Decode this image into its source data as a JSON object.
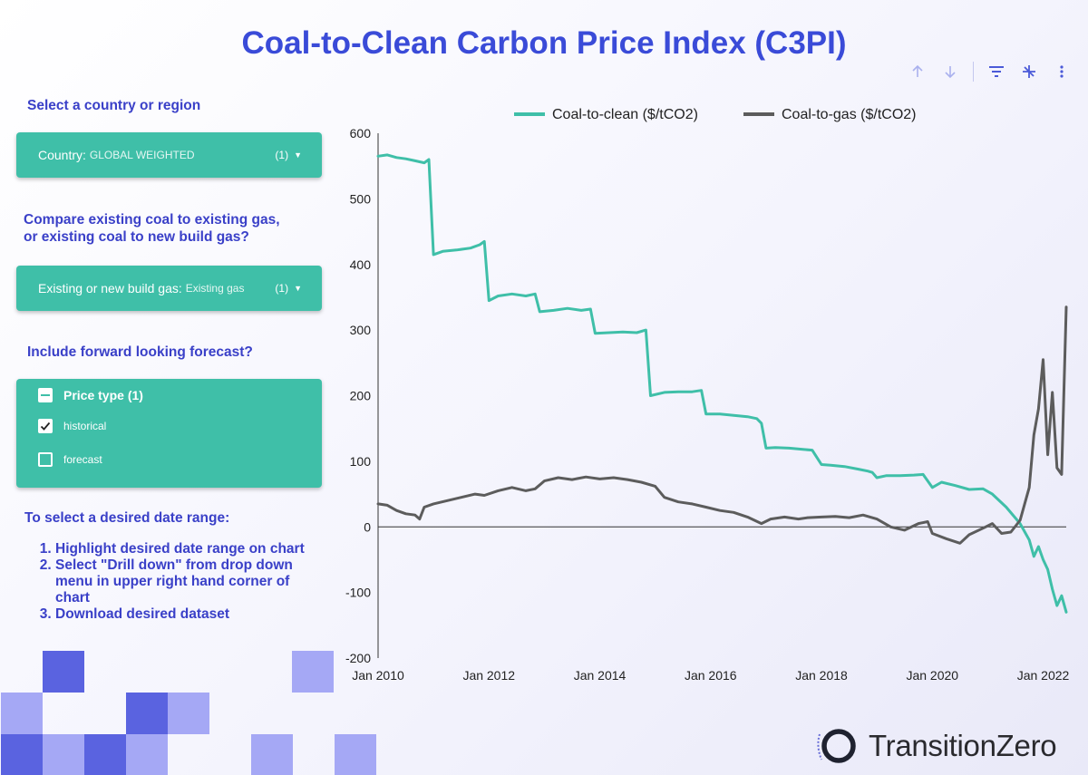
{
  "page": {
    "title": "Coal-to-Clean Carbon Price Index (C3PI)"
  },
  "toolbar": {
    "icons": [
      "sort-ascending-icon",
      "sort-descending-icon",
      "filter-icon",
      "drill-down-icon",
      "more-vert-icon"
    ]
  },
  "controls": {
    "country_prompt": "Select a country or region",
    "country_dropdown": {
      "label": "Country:",
      "value": "GLOBAL WEIGHTED",
      "count": "(1)"
    },
    "gas_prompt_line1": "Compare existing coal to existing gas,",
    "gas_prompt_line2": "or existing coal to new build gas?",
    "gas_dropdown": {
      "label": "Existing or new build gas:",
      "value": "Existing gas",
      "count": "(1)"
    },
    "forecast_prompt": "Include forward looking forecast?",
    "price_type": {
      "header": "Price type (1)",
      "options": [
        {
          "label": "historical",
          "checked": true
        },
        {
          "label": "forecast",
          "checked": false
        }
      ]
    }
  },
  "instructions": {
    "heading": "To select a desired date range:",
    "steps": [
      "Highlight desired date range on chart",
      "Select \"Drill down\" from drop down menu in upper right hand corner of chart",
      "Download desired dataset"
    ]
  },
  "logo": {
    "text": "TransitionZero"
  },
  "colors": {
    "title": "#3a4bd8",
    "prompt": "#3a40c8",
    "control_bg": "#3fbfa8",
    "coal_to_clean": "#3fbfa8",
    "coal_to_gas": "#5c5c5c",
    "tile_light": "#a5a8f5",
    "tile_dark": "#5a63e0"
  },
  "chart_data": {
    "type": "line",
    "title": "",
    "xlabel": "",
    "ylabel": "",
    "ylim": [
      -200,
      600
    ],
    "yticks": [
      "600",
      "500",
      "400",
      "300",
      "200",
      "100",
      "0",
      "-100",
      "-200"
    ],
    "xlim": [
      "2010-01",
      "2022-06"
    ],
    "xticks": [
      "Jan 2010",
      "Jan 2012",
      "Jan 2014",
      "Jan 2016",
      "Jan 2018",
      "Jan 2020",
      "Jan 2022"
    ],
    "grid": false,
    "zero_line": true,
    "legend_position": "top",
    "series": [
      {
        "name": "Coal-to-clean ($/tCO2)",
        "color": "#3fbfa8",
        "points": [
          [
            "2010-01",
            565
          ],
          [
            "2010-03",
            567
          ],
          [
            "2010-05",
            563
          ],
          [
            "2010-07",
            561
          ],
          [
            "2010-09",
            558
          ],
          [
            "2010-11",
            555
          ],
          [
            "2010-12",
            560
          ],
          [
            "2011-01",
            415
          ],
          [
            "2011-03",
            420
          ],
          [
            "2011-06",
            422
          ],
          [
            "2011-09",
            425
          ],
          [
            "2011-11",
            430
          ],
          [
            "2011-12",
            435
          ],
          [
            "2012-01",
            345
          ],
          [
            "2012-03",
            352
          ],
          [
            "2012-06",
            355
          ],
          [
            "2012-09",
            352
          ],
          [
            "2012-11",
            355
          ],
          [
            "2012-12",
            328
          ],
          [
            "2013-03",
            330
          ],
          [
            "2013-06",
            333
          ],
          [
            "2013-09",
            330
          ],
          [
            "2013-11",
            332
          ],
          [
            "2013-12",
            295
          ],
          [
            "2014-03",
            296
          ],
          [
            "2014-06",
            297
          ],
          [
            "2014-09",
            296
          ],
          [
            "2014-11",
            300
          ],
          [
            "2014-12",
            200
          ],
          [
            "2015-03",
            205
          ],
          [
            "2015-06",
            206
          ],
          [
            "2015-09",
            206
          ],
          [
            "2015-11",
            208
          ],
          [
            "2015-12",
            172
          ],
          [
            "2016-03",
            172
          ],
          [
            "2016-06",
            170
          ],
          [
            "2016-09",
            168
          ],
          [
            "2016-11",
            165
          ],
          [
            "2016-12",
            158
          ],
          [
            "2017-01",
            120
          ],
          [
            "2017-03",
            121
          ],
          [
            "2017-06",
            120
          ],
          [
            "2017-09",
            118
          ],
          [
            "2017-11",
            117
          ],
          [
            "2018-01",
            95
          ],
          [
            "2018-03",
            94
          ],
          [
            "2018-06",
            92
          ],
          [
            "2018-09",
            88
          ],
          [
            "2018-11",
            85
          ],
          [
            "2018-12",
            83
          ],
          [
            "2019-01",
            75
          ],
          [
            "2019-03",
            78
          ],
          [
            "2019-06",
            78
          ],
          [
            "2019-09",
            79
          ],
          [
            "2019-11",
            80
          ],
          [
            "2020-01",
            60
          ],
          [
            "2020-03",
            68
          ],
          [
            "2020-06",
            63
          ],
          [
            "2020-09",
            57
          ],
          [
            "2020-12",
            58
          ],
          [
            "2021-02",
            50
          ],
          [
            "2021-05",
            30
          ],
          [
            "2021-08",
            5
          ],
          [
            "2021-10",
            -20
          ],
          [
            "2021-11",
            -45
          ],
          [
            "2021-12",
            -30
          ],
          [
            "2022-01",
            -50
          ],
          [
            "2022-02",
            -65
          ],
          [
            "2022-03",
            -95
          ],
          [
            "2022-04",
            -120
          ],
          [
            "2022-05",
            -105
          ],
          [
            "2022-06",
            -130
          ]
        ]
      },
      {
        "name": "Coal-to-gas ($/tCO2)",
        "color": "#5c5c5c",
        "points": [
          [
            "2010-01",
            35
          ],
          [
            "2010-03",
            33
          ],
          [
            "2010-05",
            25
          ],
          [
            "2010-07",
            20
          ],
          [
            "2010-09",
            18
          ],
          [
            "2010-10",
            12
          ],
          [
            "2010-11",
            30
          ],
          [
            "2011-01",
            35
          ],
          [
            "2011-04",
            40
          ],
          [
            "2011-07",
            45
          ],
          [
            "2011-10",
            50
          ],
          [
            "2011-12",
            48
          ],
          [
            "2012-03",
            55
          ],
          [
            "2012-06",
            60
          ],
          [
            "2012-09",
            55
          ],
          [
            "2012-11",
            58
          ],
          [
            "2013-01",
            70
          ],
          [
            "2013-04",
            75
          ],
          [
            "2013-07",
            72
          ],
          [
            "2013-10",
            76
          ],
          [
            "2014-01",
            73
          ],
          [
            "2014-04",
            75
          ],
          [
            "2014-07",
            72
          ],
          [
            "2014-10",
            68
          ],
          [
            "2015-01",
            62
          ],
          [
            "2015-03",
            45
          ],
          [
            "2015-06",
            38
          ],
          [
            "2015-09",
            35
          ],
          [
            "2015-12",
            30
          ],
          [
            "2016-03",
            25
          ],
          [
            "2016-06",
            22
          ],
          [
            "2016-09",
            15
          ],
          [
            "2016-12",
            5
          ],
          [
            "2017-02",
            12
          ],
          [
            "2017-05",
            15
          ],
          [
            "2017-08",
            12
          ],
          [
            "2017-10",
            14
          ],
          [
            "2018-01",
            15
          ],
          [
            "2018-04",
            16
          ],
          [
            "2018-07",
            14
          ],
          [
            "2018-10",
            18
          ],
          [
            "2019-01",
            12
          ],
          [
            "2019-04",
            0
          ],
          [
            "2019-07",
            -5
          ],
          [
            "2019-10",
            5
          ],
          [
            "2019-12",
            8
          ],
          [
            "2020-01",
            -10
          ],
          [
            "2020-04",
            -18
          ],
          [
            "2020-07",
            -25
          ],
          [
            "2020-09",
            -12
          ],
          [
            "2020-12",
            -2
          ],
          [
            "2021-02",
            5
          ],
          [
            "2021-04",
            -10
          ],
          [
            "2021-06",
            -8
          ],
          [
            "2021-08",
            10
          ],
          [
            "2021-10",
            60
          ],
          [
            "2021-11",
            140
          ],
          [
            "2021-12",
            180
          ],
          [
            "2022-01",
            255
          ],
          [
            "2022-02",
            110
          ],
          [
            "2022-03",
            205
          ],
          [
            "2022-04",
            90
          ],
          [
            "2022-05",
            80
          ],
          [
            "2022-06",
            335
          ]
        ]
      }
    ]
  }
}
